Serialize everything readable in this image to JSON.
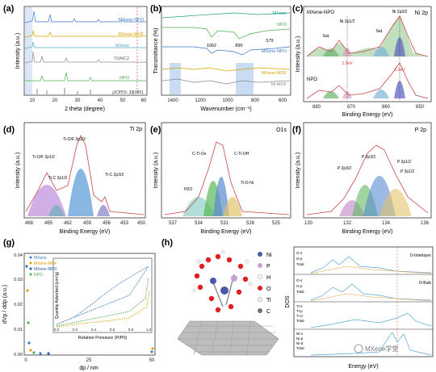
{
  "figure": {
    "watermark": "MXene学堂",
    "panels": {
      "a": {
        "label": "(a)",
        "xlabel": "2 theta (degree)",
        "ylabel": "Intensity (a.u.)",
        "xticks": [
          "10",
          "20",
          "30",
          "40",
          "50",
          "60"
        ],
        "traces": [
          {
            "name": "MXene-NPO",
            "color": "#3a78c2"
          },
          {
            "name": "MXene-MOF",
            "color": "#d9a300"
          },
          {
            "name": "MXene",
            "color": "#5aa6d6"
          },
          {
            "name": "Ti3AlC2",
            "color": "#8c8c8c"
          },
          {
            "name": "NPO",
            "color": "#4caf50"
          },
          {
            "name": "JCPDS: 33-0951",
            "color": "#333333"
          }
        ]
      },
      "b": {
        "label": "(b)",
        "xlabel": "Wavenumber (cm⁻¹)",
        "ylabel": "Transmittance (%)",
        "xticks": [
          "1400",
          "1200",
          "1000",
          "800",
          "600"
        ],
        "peak_labels": [
          "1062",
          "890",
          "579"
        ],
        "traces": [
          {
            "name": "MXene",
            "color": "#1f9e89"
          },
          {
            "name": "NPO",
            "color": "#4caf50"
          },
          {
            "name": "MXene-NPO",
            "color": "#3a78c2"
          },
          {
            "name": "MXene-MOF",
            "color": "#d9a300"
          },
          {
            "name": "Ni-MOF",
            "color": "#888888"
          }
        ]
      },
      "c": {
        "label": "(c)",
        "title": "Ni 2p",
        "xlabel": "Binding Energy (eV)",
        "ylabel": "Intensity (a.u.)",
        "xticks": [
          "880",
          "870",
          "860",
          "850"
        ],
        "sample_labels": [
          "MXene-NPO",
          "NPO"
        ],
        "peak_labels": [
          "Ni 2p1/2",
          "Ni 2p3/2",
          "Sat.",
          "Sat."
        ],
        "shift_labels": [
          "1.2eV",
          "1.2eV"
        ]
      },
      "d": {
        "label": "(d)",
        "title": "Ti 2p",
        "xlabel": "Binding Energy (eV)",
        "ylabel": "Intensity (a.u.)",
        "xticks": [
          "468",
          "465",
          "462",
          "459",
          "456",
          "453",
          "450"
        ],
        "peak_labels": [
          "Ti-O/F 2p1/2",
          "Ti-O/F 2p3/2",
          "Ti-C 2p1/2",
          "Ti-C 2p3/2"
        ]
      },
      "e": {
        "label": "(e)",
        "title": "O1s",
        "xlabel": "Binding Energy (eV)",
        "ylabel": "Intensity (a.u.)",
        "xticks": [
          "537",
          "534",
          "531",
          "528",
          "525"
        ],
        "peak_labels": [
          "C-Ti-Ox",
          "C-Ti-OH",
          "H2O",
          "Ti-O-Ni"
        ]
      },
      "f": {
        "label": "(f)",
        "title": "P 2p",
        "xlabel": "Binding Energy (eV)",
        "ylabel": "Intensity (a.u.)",
        "xticks": [
          "130",
          "132",
          "134",
          "136"
        ],
        "peak_labels": [
          "P 2p3/2",
          "P 2p3/2",
          "P 2p1/2",
          "P 2p1/2"
        ]
      },
      "g": {
        "label": "(g)",
        "xlabel": "dp / nm",
        "ylabel": "dVp / ddp (a.u.)",
        "yticks": [
          "0.00",
          "0.01",
          "0.02",
          "0.03",
          "0.04"
        ],
        "xticks": [
          "0",
          "25",
          "50"
        ],
        "legend": [
          {
            "name": "MXene",
            "color": "#3a78c2"
          },
          {
            "name": "MXene-MOF",
            "color": "#d9a300"
          },
          {
            "name": "MXene-NPO",
            "color": "#2a5aa8"
          },
          {
            "name": "NPO",
            "color": "#4caf50"
          }
        ],
        "inset": {
          "xlabel": "Relative Pressure (P/P0)",
          "ylabel": "Quantity Adsorbed (cm³/g)",
          "xticks": [
            "0.0",
            "0.2",
            "0.4",
            "0.6",
            "0.8",
            "1.0"
          ]
        }
      },
      "h": {
        "label": "(h)",
        "legend": [
          {
            "name": "Ni",
            "color": "#4a5aa8"
          },
          {
            "name": "P",
            "color": "#c8a0d0"
          },
          {
            "name": "H",
            "color": "#f2f2f2"
          },
          {
            "name": "O",
            "color": "#e02020"
          },
          {
            "name": "Ti",
            "color": "#e8e8e8"
          },
          {
            "name": "C",
            "color": "#707070"
          }
        ]
      },
      "i": {
        "xlabel": "Energy (eV)",
        "ylabel": "DOS",
        "blocks": [
          {
            "title": "O-Interlayer",
            "lines": [
              "O-s",
              "O-p",
              "Total"
            ]
          },
          {
            "title": "O-Bulk",
            "lines": [
              "O-s",
              "O-p",
              "Total"
            ]
          },
          {
            "title": "",
            "lines": [
              "Ti-s",
              "Ti-p",
              "Ti-d",
              "Total"
            ]
          },
          {
            "title": "",
            "lines": [
              "Ni-s",
              "Ni-p",
              "Ni-d",
              "Total"
            ]
          }
        ]
      }
    }
  }
}
